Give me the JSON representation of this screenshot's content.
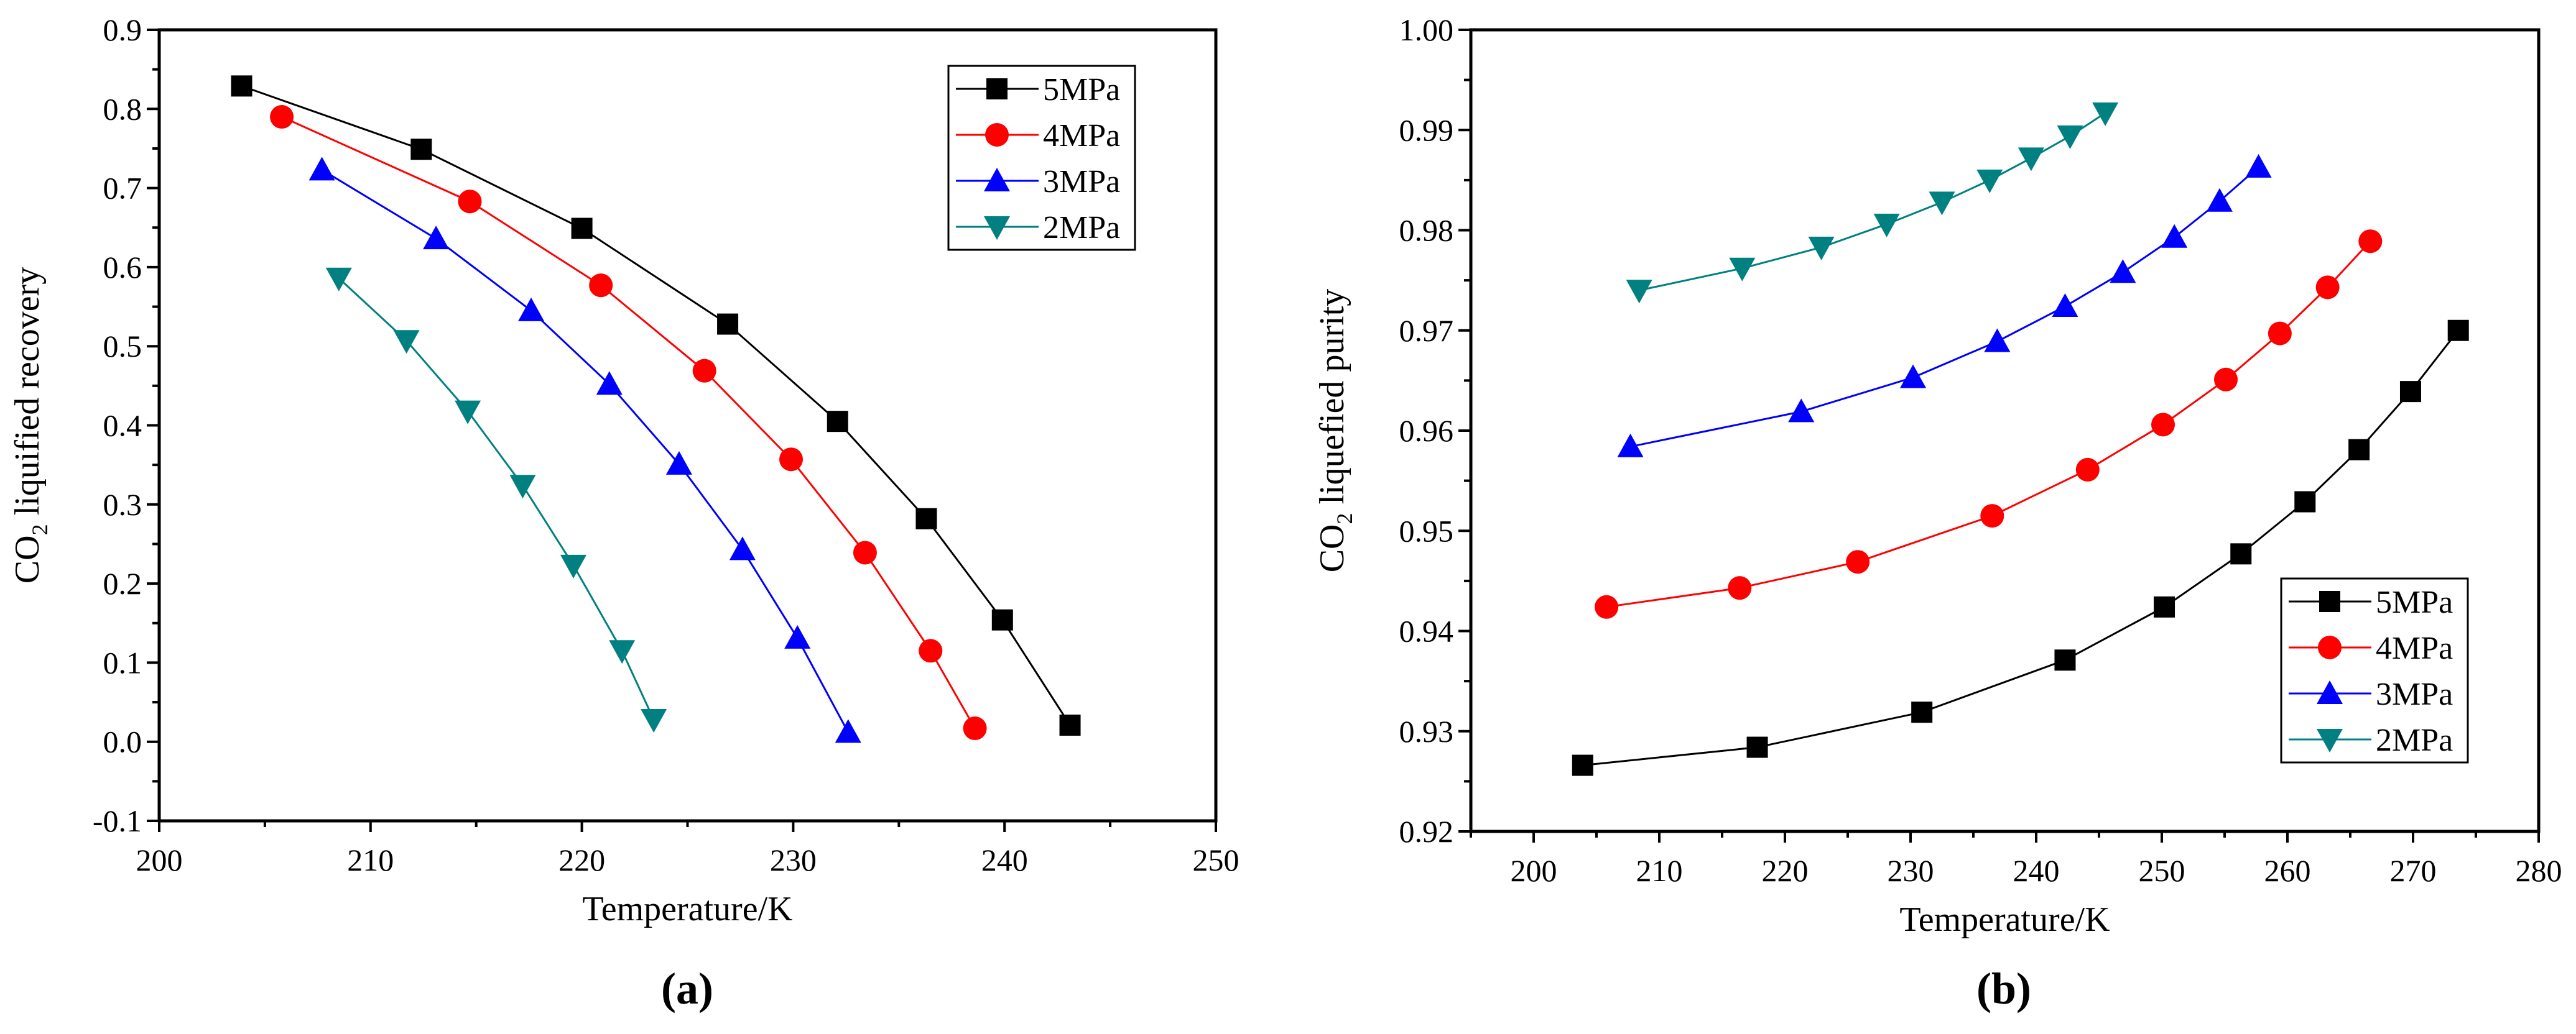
{
  "chart_data": [
    {
      "type": "line",
      "panel_label": "(a)",
      "xlabel": "Temperature/K",
      "ylabel": "CO2 liquified recovery",
      "ylabel_main": "CO",
      "ylabel_sub": "2",
      "ylabel_rest": " liquified recovery",
      "xlim": [
        200,
        250
      ],
      "ylim": [
        -0.1,
        0.9
      ],
      "xticks": [
        200,
        210,
        220,
        230,
        240,
        250
      ],
      "yticks": [
        -0.1,
        0.0,
        0.1,
        0.2,
        0.3,
        0.4,
        0.5,
        0.6,
        0.7,
        0.8,
        0.9
      ],
      "ytick_labels": [
        "-0.1",
        "0.0",
        "0.1",
        "0.2",
        "0.3",
        "0.4",
        "0.5",
        "0.6",
        "0.7",
        "0.8",
        "0.9"
      ],
      "grid": false,
      "legend_position": "top-right",
      "series": [
        {
          "name": "5MPa",
          "color": "#000000",
          "marker": "square",
          "x": [
            203.9,
            212.4,
            220.0,
            226.9,
            232.1,
            236.3,
            239.9,
            243.1
          ],
          "y": [
            0.829,
            0.749,
            0.649,
            0.528,
            0.405,
            0.282,
            0.154,
            0.021
          ]
        },
        {
          "name": "4MPa",
          "color": "#ff0000",
          "marker": "circle",
          "x": [
            205.8,
            214.7,
            220.9,
            225.8,
            229.9,
            233.4,
            236.5,
            238.6
          ],
          "y": [
            0.79,
            0.683,
            0.577,
            0.469,
            0.357,
            0.239,
            0.115,
            0.017
          ]
        },
        {
          "name": "3MPa",
          "color": "#0000ff",
          "marker": "triangle-up",
          "x": [
            207.7,
            213.1,
            217.6,
            221.3,
            224.6,
            227.6,
            230.2,
            232.6
          ],
          "y": [
            0.723,
            0.636,
            0.545,
            0.452,
            0.351,
            0.243,
            0.131,
            0.012
          ]
        },
        {
          "name": "2MPa",
          "color": "#008080",
          "marker": "triangle-down",
          "x": [
            208.5,
            211.7,
            214.6,
            217.2,
            219.6,
            221.9,
            223.4
          ],
          "y": [
            0.586,
            0.507,
            0.418,
            0.324,
            0.223,
            0.115,
            0.028
          ]
        }
      ]
    },
    {
      "type": "line",
      "panel_label": "(b)",
      "xlabel": "Temperature/K",
      "ylabel": "CO2 liquefied purity",
      "ylabel_main": "CO",
      "ylabel_sub": "2",
      "ylabel_rest": " liquefied purity",
      "xlim": [
        195,
        280
      ],
      "ylim": [
        0.92,
        1.0
      ],
      "xticks": [
        200,
        210,
        220,
        230,
        240,
        250,
        260,
        270,
        280
      ],
      "yticks": [
        0.92,
        0.93,
        0.94,
        0.95,
        0.96,
        0.97,
        0.98,
        0.99,
        1.0
      ],
      "ytick_labels": [
        "0.92",
        "0.93",
        "0.94",
        "0.95",
        "0.96",
        "0.97",
        "0.98",
        "0.99",
        "1.00"
      ],
      "grid": false,
      "legend_position": "bottom-right",
      "series": [
        {
          "name": "5MPa",
          "color": "#000000",
          "marker": "square",
          "x": [
            203.9,
            217.8,
            230.9,
            242.3,
            250.2,
            256.3,
            261.4,
            265.7,
            269.8,
            273.6
          ],
          "y": [
            0.9266,
            0.9284,
            0.9319,
            0.9371,
            0.9424,
            0.9477,
            0.9529,
            0.9581,
            0.9639,
            0.97
          ]
        },
        {
          "name": "4MPa",
          "color": "#ff0000",
          "marker": "circle",
          "x": [
            205.8,
            216.4,
            225.8,
            236.5,
            244.1,
            250.1,
            255.1,
            259.4,
            263.2,
            266.6
          ],
          "y": [
            0.9424,
            0.9443,
            0.9469,
            0.9515,
            0.9561,
            0.9606,
            0.9651,
            0.9697,
            0.9743,
            0.9789
          ]
        },
        {
          "name": "3MPa",
          "color": "#0000ff",
          "marker": "triangle-up",
          "x": [
            207.7,
            221.3,
            230.2,
            236.9,
            242.3,
            246.9,
            251.0,
            254.6,
            257.7
          ],
          "y": [
            0.9584,
            0.9619,
            0.9653,
            0.9689,
            0.9724,
            0.9758,
            0.9793,
            0.9829,
            0.9863
          ]
        },
        {
          "name": "2MPa",
          "color": "#008080",
          "marker": "triangle-down",
          "x": [
            208.4,
            216.6,
            222.9,
            228.1,
            232.5,
            236.3,
            239.6,
            242.7,
            245.5
          ],
          "y": [
            0.974,
            0.9762,
            0.9783,
            0.9806,
            0.9828,
            0.985,
            0.9872,
            0.9894,
            0.9917
          ]
        }
      ]
    }
  ]
}
